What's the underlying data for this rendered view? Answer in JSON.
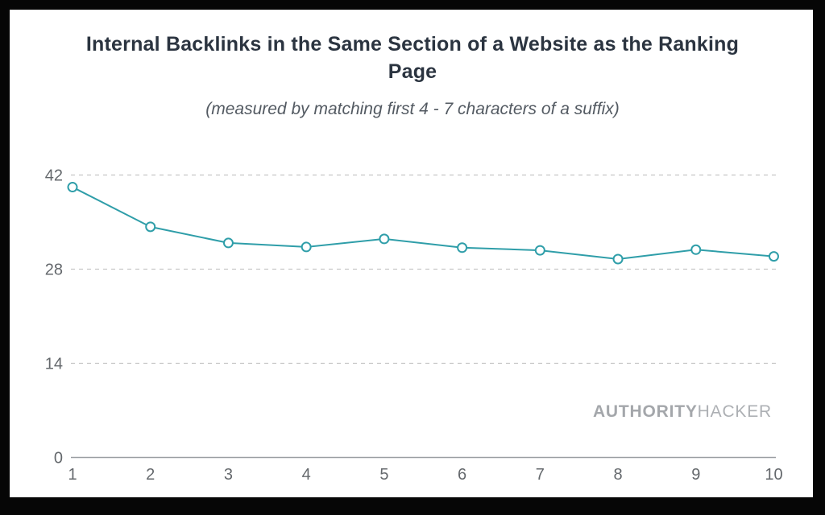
{
  "chart_data": {
    "type": "line",
    "title": "Internal Backlinks in the Same Section of a Website as the Ranking Page",
    "subtitle": "(measured by matching first 4 - 7 characters of a suffix)",
    "x": [
      1,
      2,
      3,
      4,
      5,
      6,
      7,
      8,
      9,
      10
    ],
    "values": [
      40.2,
      34.3,
      31.9,
      31.3,
      32.5,
      31.2,
      30.8,
      29.5,
      30.9,
      29.9
    ],
    "xlabel": "",
    "ylabel": "",
    "yticks": [
      0,
      14,
      28,
      42
    ],
    "ylim": [
      0,
      42
    ],
    "xlim": [
      1,
      10
    ],
    "grid": "horizontal-dashed",
    "legend_position": "none",
    "line_color": "#2f9ea9",
    "marker": "open-circle",
    "marker_fill": "#ffffff",
    "gridline_color": "#c6c6c6",
    "axis_line_color": "#9b9fa3",
    "tick_label_color": "#64686c"
  },
  "branding": {
    "logo_bold": "AUTHORITY",
    "logo_light": "HACKER"
  },
  "colors": {
    "frame": "#060606",
    "card_background": "#ffffff",
    "title": "#2b3440",
    "subtitle": "#535a62"
  }
}
